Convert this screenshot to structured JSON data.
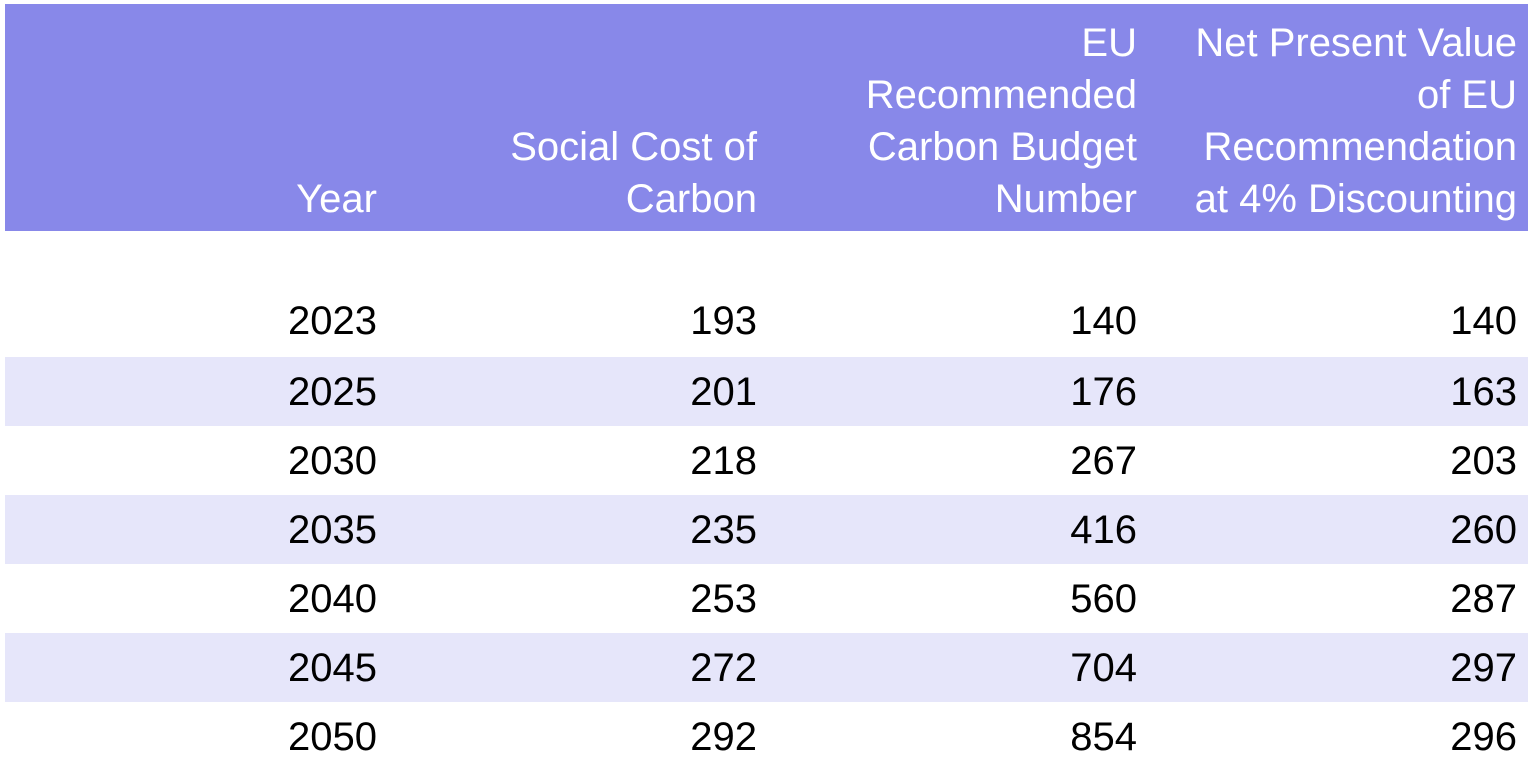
{
  "chart_data": {
    "type": "table",
    "columns": [
      "Year",
      "Social Cost of Carbon",
      "EU Recommended Carbon Budget Number",
      "Net Present Value of EU Recommendation at 4% Discounting"
    ],
    "header_lines": [
      "Year",
      "Social Cost of\nCarbon",
      "EU\nRecommended\nCarbon Budget\nNumber",
      "Net Present Value\nof EU\nRecommendation\nat 4% Discounting"
    ],
    "rows": [
      [
        "2023",
        "193",
        "140",
        "140"
      ],
      [
        "2025",
        "201",
        "176",
        "163"
      ],
      [
        "2030",
        "218",
        "267",
        "203"
      ],
      [
        "2035",
        "235",
        "416",
        "260"
      ],
      [
        "2040",
        "253",
        "560",
        "287"
      ],
      [
        "2045",
        "272",
        "704",
        "297"
      ],
      [
        "2050",
        "292",
        "854",
        "296"
      ]
    ],
    "colors": {
      "header_background": "#8888e9",
      "header_text": "#ffffff",
      "shaded_row": "#e6e6fa",
      "plain_row": "#ffffff"
    }
  }
}
